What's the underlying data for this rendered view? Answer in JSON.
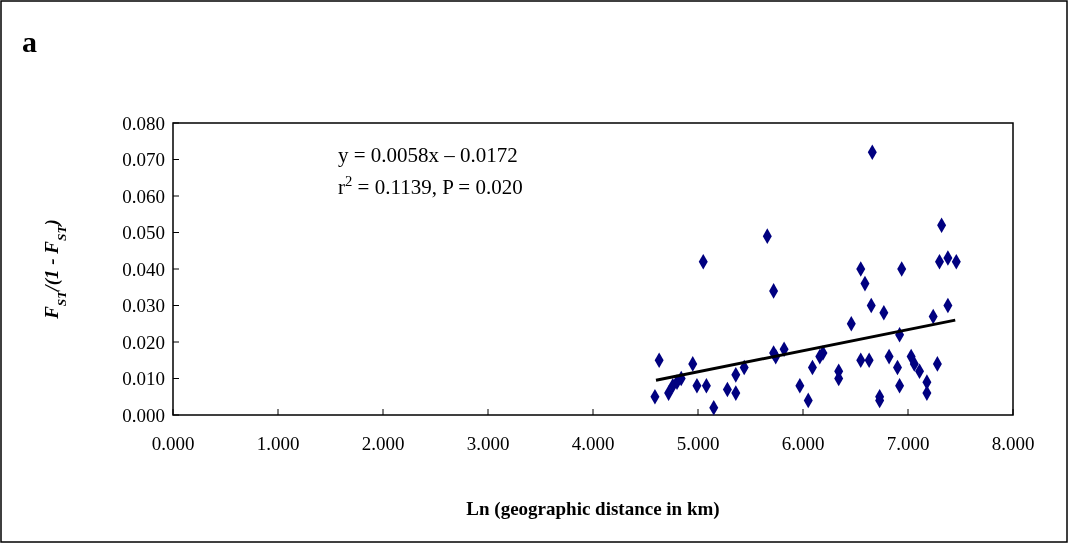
{
  "chart_data": {
    "type": "scatter",
    "title": "a",
    "xlabel": "Ln (geographic distance in km)",
    "ylabel": "F$_{ST}$/(1 - F$_{ST}$)",
    "annotations": [
      "y = 0.0058x – 0.0172",
      "r$^{2}$ = 0.1139, P = 0.020"
    ],
    "xlim": [
      0,
      8
    ],
    "ylim": [
      0,
      0.08
    ],
    "xticks": [
      {
        "value": 0,
        "label": "0.000"
      },
      {
        "value": 1,
        "label": "1.000"
      },
      {
        "value": 2,
        "label": "2.000"
      },
      {
        "value": 3,
        "label": "3.000"
      },
      {
        "value": 4,
        "label": "4.000"
      },
      {
        "value": 5,
        "label": "5.000"
      },
      {
        "value": 6,
        "label": "6.000"
      },
      {
        "value": 7,
        "label": "7.000"
      },
      {
        "value": 8,
        "label": "8.000"
      }
    ],
    "yticks": [
      {
        "value": 0,
        "label": "0.000"
      },
      {
        "value": 0.01,
        "label": "0.010"
      },
      {
        "value": 0.02,
        "label": "0.020"
      },
      {
        "value": 0.03,
        "label": "0.030"
      },
      {
        "value": 0.04,
        "label": "0.040"
      },
      {
        "value": 0.05,
        "label": "0.050"
      },
      {
        "value": 0.06,
        "label": "0.060"
      },
      {
        "value": 0.07,
        "label": "0.070"
      },
      {
        "value": 0.08,
        "label": "0.080"
      }
    ],
    "grid": false,
    "marker": "diamond",
    "series": [
      {
        "color": "#000080",
        "x": [
          4.59,
          4.63,
          4.72,
          4.76,
          4.8,
          4.84,
          4.95,
          4.99,
          5.05,
          5.08,
          5.15,
          5.28,
          5.36,
          5.36,
          5.44,
          5.66,
          5.72,
          5.72,
          5.74,
          5.82,
          5.97,
          6.05,
          6.09,
          6.19,
          6.16,
          6.34,
          6.34,
          6.46,
          6.55,
          6.59,
          6.55,
          6.63,
          6.65,
          6.66,
          6.73,
          6.73,
          6.77,
          6.82,
          6.9,
          6.92,
          6.94,
          6.92,
          7.03,
          7.06,
          7.11,
          7.18,
          7.18,
          7.24,
          7.28,
          7.3,
          7.38,
          7.46,
          7.32,
          7.38
        ],
        "values": [
          0.005,
          0.015,
          0.006,
          0.008,
          0.009,
          0.01,
          0.014,
          0.008,
          0.042,
          0.008,
          0.002,
          0.007,
          0.006,
          0.011,
          0.013,
          0.049,
          0.034,
          0.017,
          0.016,
          0.018,
          0.008,
          0.004,
          0.013,
          0.017,
          0.016,
          0.012,
          0.01,
          0.025,
          0.04,
          0.036,
          0.015,
          0.015,
          0.03,
          0.072,
          0.005,
          0.004,
          0.028,
          0.016,
          0.013,
          0.022,
          0.04,
          0.008,
          0.016,
          0.014,
          0.012,
          0.009,
          0.006,
          0.027,
          0.014,
          0.042,
          0.043,
          0.042,
          0.052,
          0.03
        ]
      },
      {
        "type": "line",
        "color": "#000000",
        "marker": "none",
        "x": [
          4.6,
          7.45
        ],
        "values": [
          0.0095,
          0.026
        ]
      }
    ]
  }
}
